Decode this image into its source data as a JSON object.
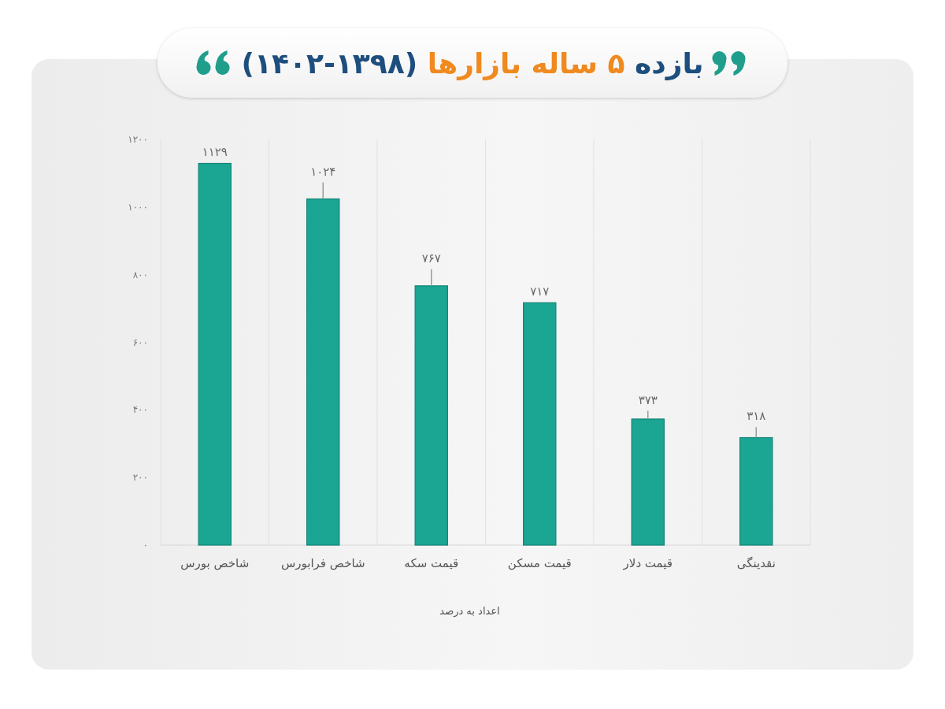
{
  "chart_data": {
    "type": "bar",
    "title": "بازده ۵ ساله بازارها (۱۳۹۸-۱۴۰۲)",
    "categories": [
      "شاخص بورس",
      "شاخص فرابورس",
      "قیمت سکه",
      "قیمت مسکن",
      "قیمت دلار",
      "نقدینگی"
    ],
    "values": [
      1129,
      1024,
      767,
      717,
      373,
      318
    ],
    "color": "#1ba593",
    "errors": [
      null,
      [
        1024,
        1073
      ],
      [
        767,
        816
      ],
      null,
      [
        373,
        397
      ],
      [
        318,
        349
      ]
    ],
    "value_labels": [
      "۱۱۲۹",
      "۱۰۲۴",
      "۷۶۷",
      "۷۱۷",
      "۳۷۳",
      "۳۱۸"
    ],
    "ylim": [
      0,
      1200
    ],
    "yticks": [
      {
        "value": 0,
        "label": "۰"
      },
      {
        "value": 200,
        "label": "۲۰۰"
      },
      {
        "value": 400,
        "label": "۴۰۰"
      },
      {
        "value": 600,
        "label": "۶۰۰"
      },
      {
        "value": 800,
        "label": "۸۰۰"
      },
      {
        "value": 1000,
        "label": "۱۰۰۰"
      },
      {
        "value": 1200,
        "label": "۱۲۰۰"
      }
    ],
    "grid": "x",
    "annotations": [
      "اعداد به درصد"
    ]
  }
}
